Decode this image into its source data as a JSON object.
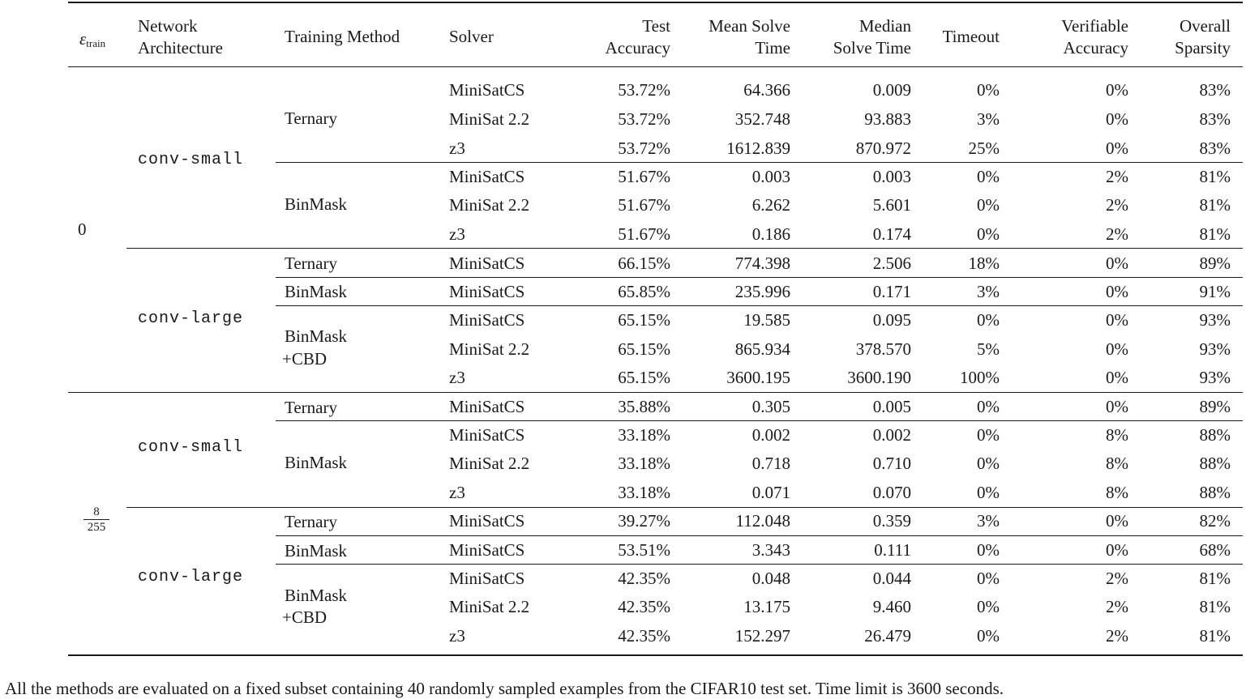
{
  "table": {
    "headers": {
      "eps_symbol": "ε",
      "eps_sub": "train",
      "network": [
        "Network",
        "Architecture"
      ],
      "training": "Training Method",
      "solver": "Solver",
      "test_acc": [
        "Test",
        "Accuracy"
      ],
      "mean_time": [
        "Mean Solve",
        "Time"
      ],
      "median_time": [
        "Median",
        "Solve Time"
      ],
      "timeout": "Timeout",
      "verif_acc": [
        "Verifiable",
        "Accuracy"
      ],
      "sparsity": [
        "Overall",
        "Sparsity"
      ]
    },
    "groups": [
      {
        "eps": "0"
      },
      {
        "eps_num": "8",
        "eps_den": "255"
      }
    ],
    "archs": [
      "conv-small",
      "conv-large",
      "conv-small",
      "conv-large"
    ],
    "methods": [
      "Ternary",
      "BinMask",
      "Ternary",
      "BinMask",
      "BinMask",
      "+CBD",
      "Ternary",
      "BinMask",
      "Ternary",
      "BinMask",
      "BinMask",
      "+CBD"
    ],
    "rows": [
      [
        "MiniSatCS",
        "53.72%",
        "64.366",
        "0.009",
        "0%",
        "0%",
        "83%"
      ],
      [
        "MiniSat 2.2",
        "53.72%",
        "352.748",
        "93.883",
        "3%",
        "0%",
        "83%"
      ],
      [
        "z3",
        "53.72%",
        "1612.839",
        "870.972",
        "25%",
        "0%",
        "83%"
      ],
      [
        "MiniSatCS",
        "51.67%",
        "0.003",
        "0.003",
        "0%",
        "2%",
        "81%"
      ],
      [
        "MiniSat 2.2",
        "51.67%",
        "6.262",
        "5.601",
        "0%",
        "2%",
        "81%"
      ],
      [
        "z3",
        "51.67%",
        "0.186",
        "0.174",
        "0%",
        "2%",
        "81%"
      ],
      [
        "MiniSatCS",
        "66.15%",
        "774.398",
        "2.506",
        "18%",
        "0%",
        "89%"
      ],
      [
        "MiniSatCS",
        "65.85%",
        "235.996",
        "0.171",
        "3%",
        "0%",
        "91%"
      ],
      [
        "MiniSatCS",
        "65.15%",
        "19.585",
        "0.095",
        "0%",
        "0%",
        "93%"
      ],
      [
        "MiniSat 2.2",
        "65.15%",
        "865.934",
        "378.570",
        "5%",
        "0%",
        "93%"
      ],
      [
        "z3",
        "65.15%",
        "3600.195",
        "3600.190",
        "100%",
        "0%",
        "93%"
      ],
      [
        "MiniSatCS",
        "35.88%",
        "0.305",
        "0.005",
        "0%",
        "0%",
        "89%"
      ],
      [
        "MiniSatCS",
        "33.18%",
        "0.002",
        "0.002",
        "0%",
        "8%",
        "88%"
      ],
      [
        "MiniSat 2.2",
        "33.18%",
        "0.718",
        "0.710",
        "0%",
        "8%",
        "88%"
      ],
      [
        "z3",
        "33.18%",
        "0.071",
        "0.070",
        "0%",
        "8%",
        "88%"
      ],
      [
        "MiniSatCS",
        "39.27%",
        "112.048",
        "0.359",
        "3%",
        "0%",
        "82%"
      ],
      [
        "MiniSatCS",
        "53.51%",
        "3.343",
        "0.111",
        "0%",
        "0%",
        "68%"
      ],
      [
        "MiniSatCS",
        "42.35%",
        "0.048",
        "0.044",
        "0%",
        "2%",
        "81%"
      ],
      [
        "MiniSat 2.2",
        "42.35%",
        "13.175",
        "9.460",
        "0%",
        "2%",
        "81%"
      ],
      [
        "z3",
        "42.35%",
        "152.297",
        "26.479",
        "0%",
        "2%",
        "81%"
      ]
    ]
  },
  "footnote": "All the methods are evaluated on a fixed subset containing 40 randomly sampled examples from the CIFAR10 test set. Time limit is 3600 seconds."
}
